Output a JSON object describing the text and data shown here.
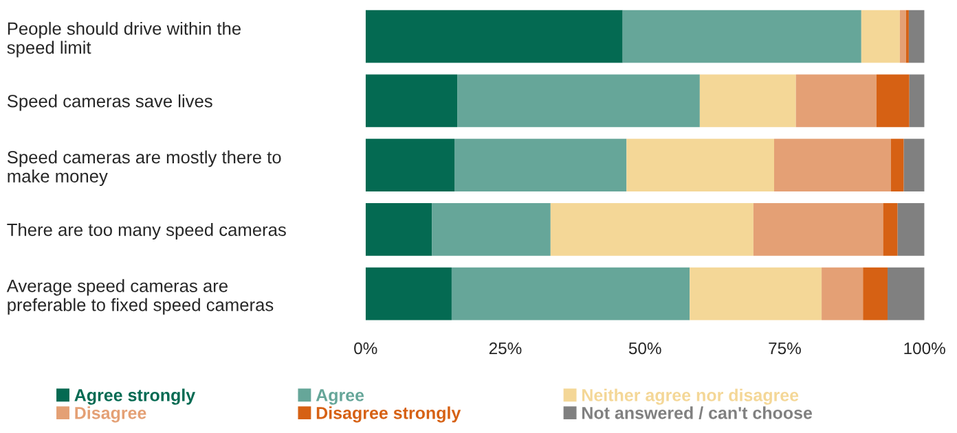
{
  "chart_data": {
    "type": "bar",
    "orientation": "horizontal",
    "stacked": true,
    "categories": [
      "People should drive within the\nspeed limit",
      "Speed cameras save lives",
      "Speed cameras are mostly there to\nmake money",
      "There are too many speed cameras",
      "Average speed cameras are\npreferable to fixed speed cameras"
    ],
    "series": [
      {
        "name": "Agree strongly",
        "color": "#046a52",
        "values": [
          46.0,
          16.4,
          15.9,
          11.9,
          15.4
        ]
      },
      {
        "name": "Agree",
        "color": "#66a699",
        "values": [
          42.7,
          43.4,
          30.8,
          21.2,
          42.6
        ]
      },
      {
        "name": "Neither agree nor disagree",
        "color": "#f4d797",
        "values": [
          6.9,
          17.2,
          26.4,
          36.3,
          23.6
        ]
      },
      {
        "name": "Disagree",
        "color": "#e4a075",
        "values": [
          1.1,
          14.4,
          20.9,
          23.2,
          7.4
        ]
      },
      {
        "name": "Disagree strongly",
        "color": "#d66114",
        "values": [
          0.5,
          5.9,
          2.3,
          2.6,
          4.4
        ]
      },
      {
        "name": "Not answered / can't choose",
        "color": "#808080",
        "values": [
          2.8,
          2.7,
          3.7,
          4.8,
          6.6
        ]
      }
    ],
    "xlim": [
      0,
      100
    ],
    "xticks": [
      {
        "value": 0,
        "label": "0%"
      },
      {
        "value": 25,
        "label": "25%"
      },
      {
        "value": 50,
        "label": "50%"
      },
      {
        "value": 75,
        "label": "75%"
      },
      {
        "value": 100,
        "label": "100%"
      }
    ],
    "grid": false,
    "legend": "bottom"
  }
}
